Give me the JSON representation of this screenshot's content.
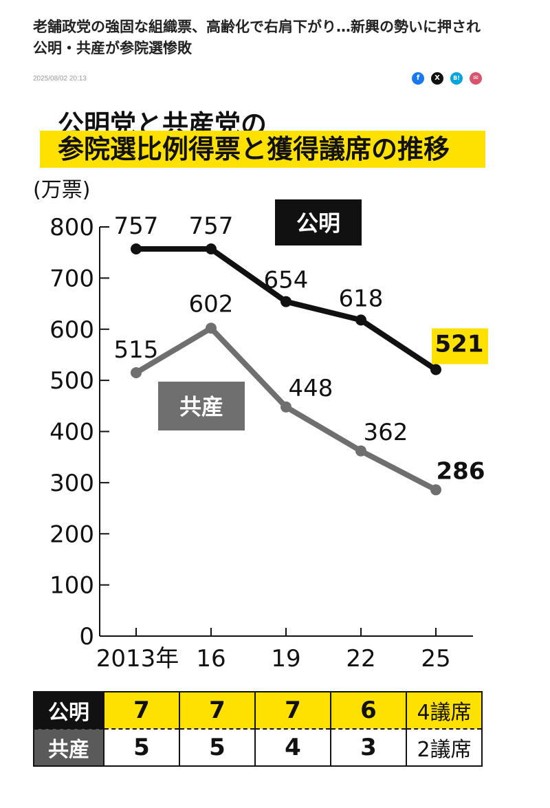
{
  "article": {
    "headline": "老舗政党の強固な組織票、高齢化で右肩下がり…新興の勢いに押され公明・共産が参院選惨敗",
    "timestamp": "2025/08/02 20:13",
    "share_icons": [
      "facebook-icon",
      "x-icon",
      "hatena-bookmark-icon",
      "mail-icon"
    ],
    "share_labels": {
      "facebook": "f",
      "x": "X",
      "hatena": "B!",
      "mail": "✉"
    }
  },
  "chart_data": {
    "type": "line",
    "title_line1": "公明党と共産党の",
    "title_line2": "参院選比例得票と獲得議席の推移",
    "ylabel": "(万票)",
    "ylim": [
      0,
      800
    ],
    "yticks": [
      "0",
      "100",
      "200",
      "300",
      "400",
      "500",
      "600",
      "700",
      "800"
    ],
    "categories": [
      "2013年",
      "16",
      "19",
      "22",
      "25"
    ],
    "grid": false,
    "series": [
      {
        "name": "公明",
        "values": [
          757,
          757,
          654,
          618,
          521
        ],
        "color": "#111111",
        "labels": [
          "757",
          "757",
          "654",
          "618",
          "521"
        ]
      },
      {
        "name": "共産",
        "values": [
          515,
          602,
          448,
          362,
          286
        ],
        "color": "#6f6f6f",
        "labels": [
          "515",
          "602",
          "448",
          "362",
          "286"
        ]
      }
    ],
    "highlight_color": "#ffe100"
  },
  "seats_table": {
    "rows": [
      {
        "party": "公明",
        "seats": [
          "7",
          "7",
          "7",
          "6",
          "4議席"
        ]
      },
      {
        "party": "共産",
        "seats": [
          "5",
          "5",
          "4",
          "3",
          "2議席"
        ]
      }
    ]
  }
}
